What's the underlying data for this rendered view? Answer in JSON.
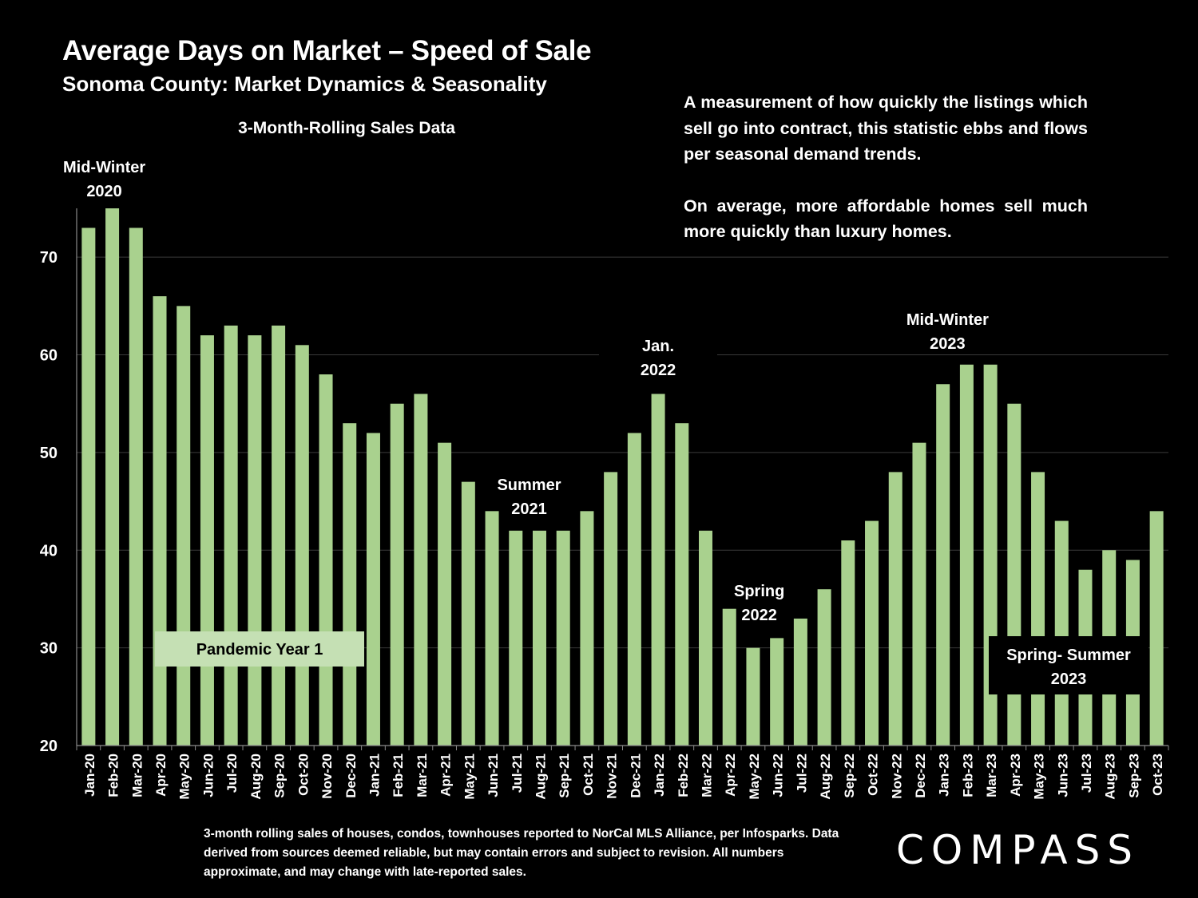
{
  "header": {
    "title": "Average Days on Market – Speed of Sale",
    "subtitle": "Sonoma County: Market Dynamics & Seasonality"
  },
  "description": {
    "para1": "A measurement of how quickly the listings which sell go into contract, this statistic ebbs and flows per seasonal demand trends.",
    "para2": "On average, more affordable homes sell much more quickly than luxury homes."
  },
  "footnote": "3-month rolling sales of houses, condos, townhouses reported to NorCal MLS Alliance, per Infosparks. Data derived from sources deemed reliable, but may contain errors and subject to revision. All numbers approximate, and may change with late-reported sales.",
  "brand": {
    "logo_text": "COMPASS"
  },
  "colors": {
    "bar": "#a9d18e",
    "background": "#000000",
    "grid": "#3a3a3a",
    "text": "#ffffff",
    "label_box": "#c5e0b4"
  },
  "chart_data": {
    "type": "bar",
    "title": "3-Month-Rolling Sales Data",
    "categories": [
      "Jan-20",
      "Feb-20",
      "Mar-20",
      "Apr-20",
      "May-20",
      "Jun-20",
      "Jul-20",
      "Aug-20",
      "Sep-20",
      "Oct-20",
      "Nov-20",
      "Dec-20",
      "Jan-21",
      "Feb-21",
      "Mar-21",
      "Apr-21",
      "May-21",
      "Jun-21",
      "Jul-21",
      "Aug-21",
      "Sep-21",
      "Oct-21",
      "Nov-21",
      "Dec-21",
      "Jan-22",
      "Feb-22",
      "Mar-22",
      "Apr-22",
      "May-22",
      "Jun-22",
      "Jul-22",
      "Aug-22",
      "Sep-22",
      "Oct-22",
      "Nov-22",
      "Dec-22",
      "Jan-23",
      "Feb-23",
      "Mar-23",
      "Apr-23",
      "May-23",
      "Jun-23",
      "Jul-23",
      "Aug-23",
      "Sep-23",
      "Oct-23"
    ],
    "values": [
      73,
      75,
      73,
      66,
      65,
      62,
      63,
      62,
      63,
      61,
      58,
      53,
      52,
      55,
      56,
      51,
      47,
      44,
      42,
      42,
      42,
      44,
      48,
      52,
      56,
      53,
      42,
      34,
      30,
      31,
      33,
      36,
      41,
      43,
      48,
      51,
      57,
      59,
      59,
      55,
      48,
      43,
      38,
      40,
      39,
      44
    ],
    "ylim": [
      20,
      75
    ],
    "yticks": [
      20,
      30,
      40,
      50,
      60,
      70
    ],
    "grid": true,
    "annotations": [
      {
        "category": "Feb-20",
        "lines": [
          "Mid-Winter",
          "2020"
        ]
      },
      {
        "category": "Aug-21",
        "lines": [
          "Summer",
          "2021"
        ]
      },
      {
        "category": "Jan-22",
        "lines": [
          "Jan.",
          "2022"
        ]
      },
      {
        "category": "Jun-22",
        "lines": [
          "Spring",
          "2022"
        ]
      },
      {
        "category": "Feb-23",
        "lines": [
          "Mid-Winter",
          "2023"
        ]
      }
    ],
    "boxed_labels": [
      {
        "text": "Pandemic Year 1",
        "style": "light"
      },
      {
        "lines": [
          "Spring- Summer",
          "2023"
        ],
        "style": "dark"
      }
    ]
  }
}
